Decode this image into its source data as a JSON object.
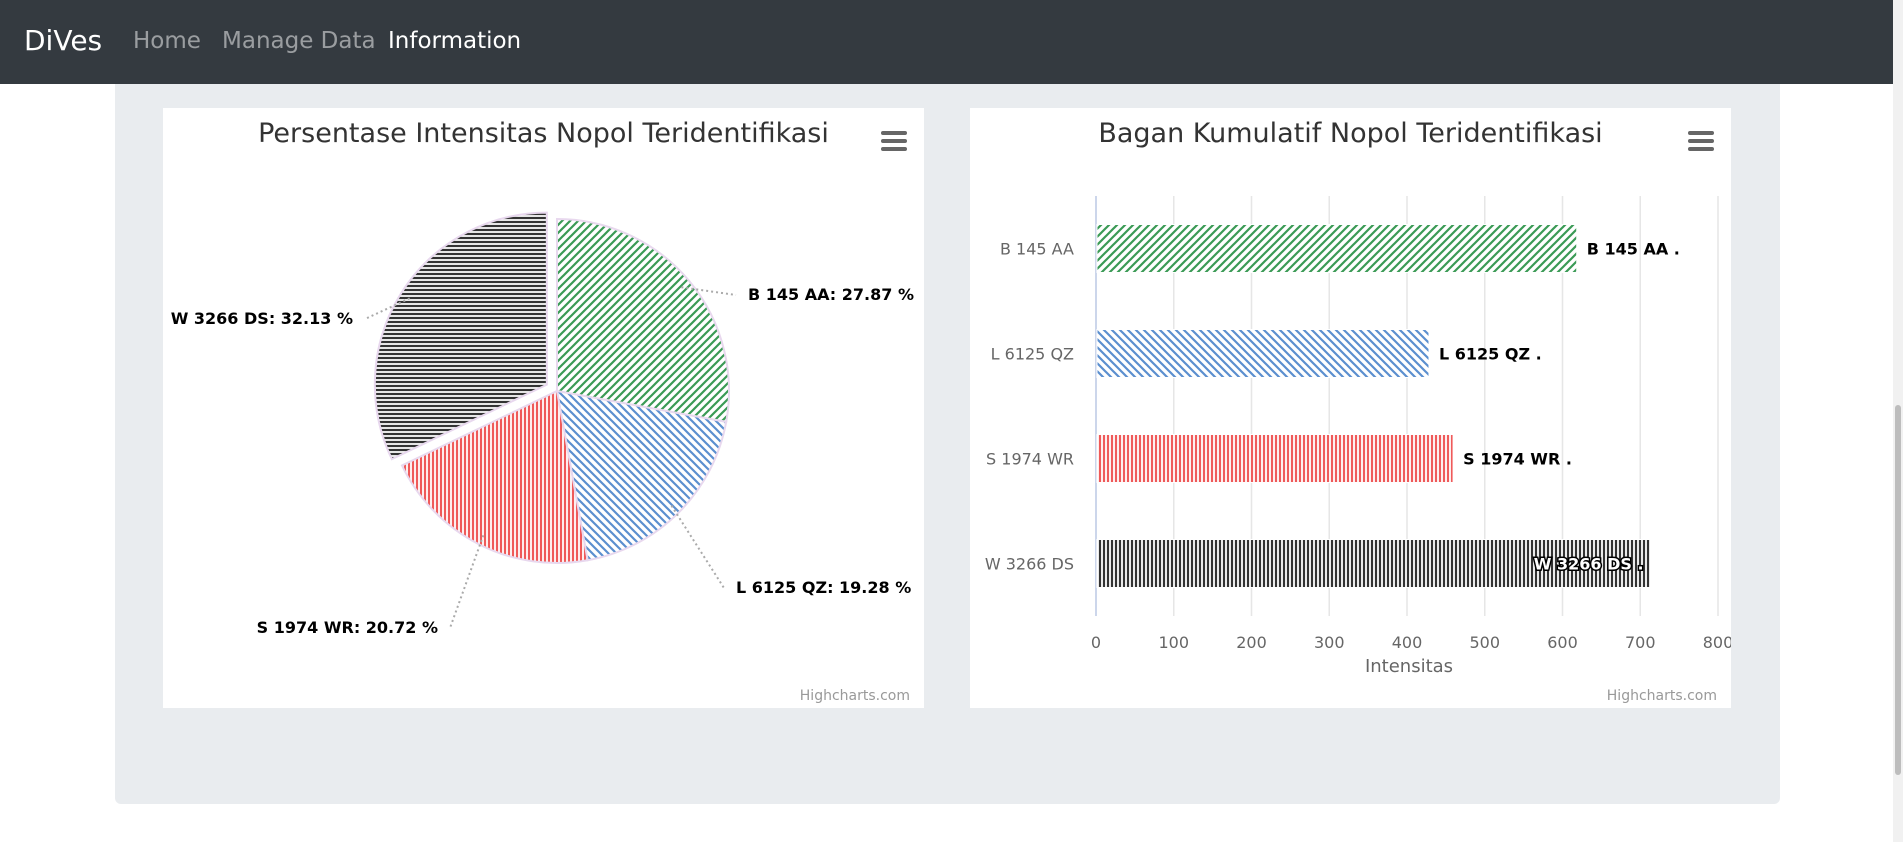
{
  "navbar": {
    "brand": "DiVes",
    "links": [
      {
        "label": "Home",
        "active": false
      },
      {
        "label": "Manage Data",
        "active": false
      },
      {
        "label": "Information",
        "active": true
      }
    ]
  },
  "colors": {
    "green": "#3a9a55",
    "blue": "#5b8fcf",
    "red": "#ef5a5a",
    "black": "#333333",
    "navbar": "#343a40"
  },
  "menu_icon": "hamburger-menu-icon",
  "chart_data": [
    {
      "type": "pie",
      "title": "Persentase Intensitas Nopol Teridentifikasi",
      "credits": "Highcharts.com",
      "slices": [
        {
          "name": "B 145 AA",
          "value": 27.87,
          "label": "B 145 AA: 27.87 %",
          "color": "#3a9a55",
          "pattern": "diag-down"
        },
        {
          "name": "L 6125 QZ",
          "value": 19.28,
          "label": "L 6125 QZ: 19.28 %",
          "color": "#5b8fcf",
          "pattern": "diag-up"
        },
        {
          "name": "S 1974 WR",
          "value": 20.72,
          "label": "S 1974 WR: 20.72 %",
          "color": "#ef5a5a",
          "pattern": "vertical"
        },
        {
          "name": "W 3266 DS",
          "value": 32.13,
          "label": "W 3266 DS: 32.13 %",
          "color": "#333333",
          "pattern": "horizontal",
          "sliced": true
        }
      ]
    },
    {
      "type": "bar",
      "title": "Bagan Kumulatif Nopol Teridentifikasi",
      "credits": "Highcharts.com",
      "categories": [
        "B 145 AA",
        "L 6125 QZ",
        "S 1974 WR",
        "W 3266 DS"
      ],
      "values": [
        617,
        427,
        458,
        712
      ],
      "data_labels": [
        "B 145 AA .",
        "L 6125 QZ .",
        "S 1974 WR .",
        "W 3266 DS ."
      ],
      "colors": [
        "#3a9a55",
        "#5b8fcf",
        "#ef5a5a",
        "#333333"
      ],
      "patterns": [
        "diag-down",
        "diag-up",
        "vertical",
        "vertical"
      ],
      "xlim": [
        0,
        800
      ],
      "ticks": [
        0,
        100,
        200,
        300,
        400,
        500,
        600,
        700,
        800
      ],
      "xlabel": "Intensitas"
    }
  ]
}
